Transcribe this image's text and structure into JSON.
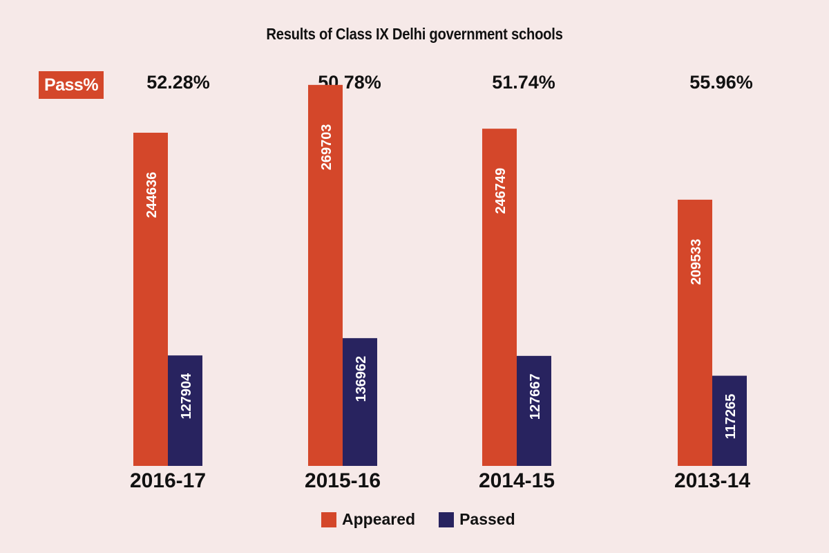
{
  "chart_data": {
    "type": "bar",
    "title": "Results of Class IX Delhi government schools",
    "categories": [
      "2016-17",
      "2015-16",
      "2014-15",
      "2013-14"
    ],
    "series": [
      {
        "name": "Appeared",
        "color": "#d4472a",
        "values": [
          244636,
          269703,
          246749,
          209533
        ]
      },
      {
        "name": "Passed",
        "color": "#28235f",
        "values": [
          127904,
          136962,
          127667,
          117265
        ]
      }
    ],
    "pass_label": "Pass%",
    "pass_percent": [
      "52.28%",
      "50.78%",
      "51.74%",
      "55.96%"
    ],
    "xlabel": "",
    "ylabel": "",
    "grid": false,
    "legend": "bottom-center"
  }
}
